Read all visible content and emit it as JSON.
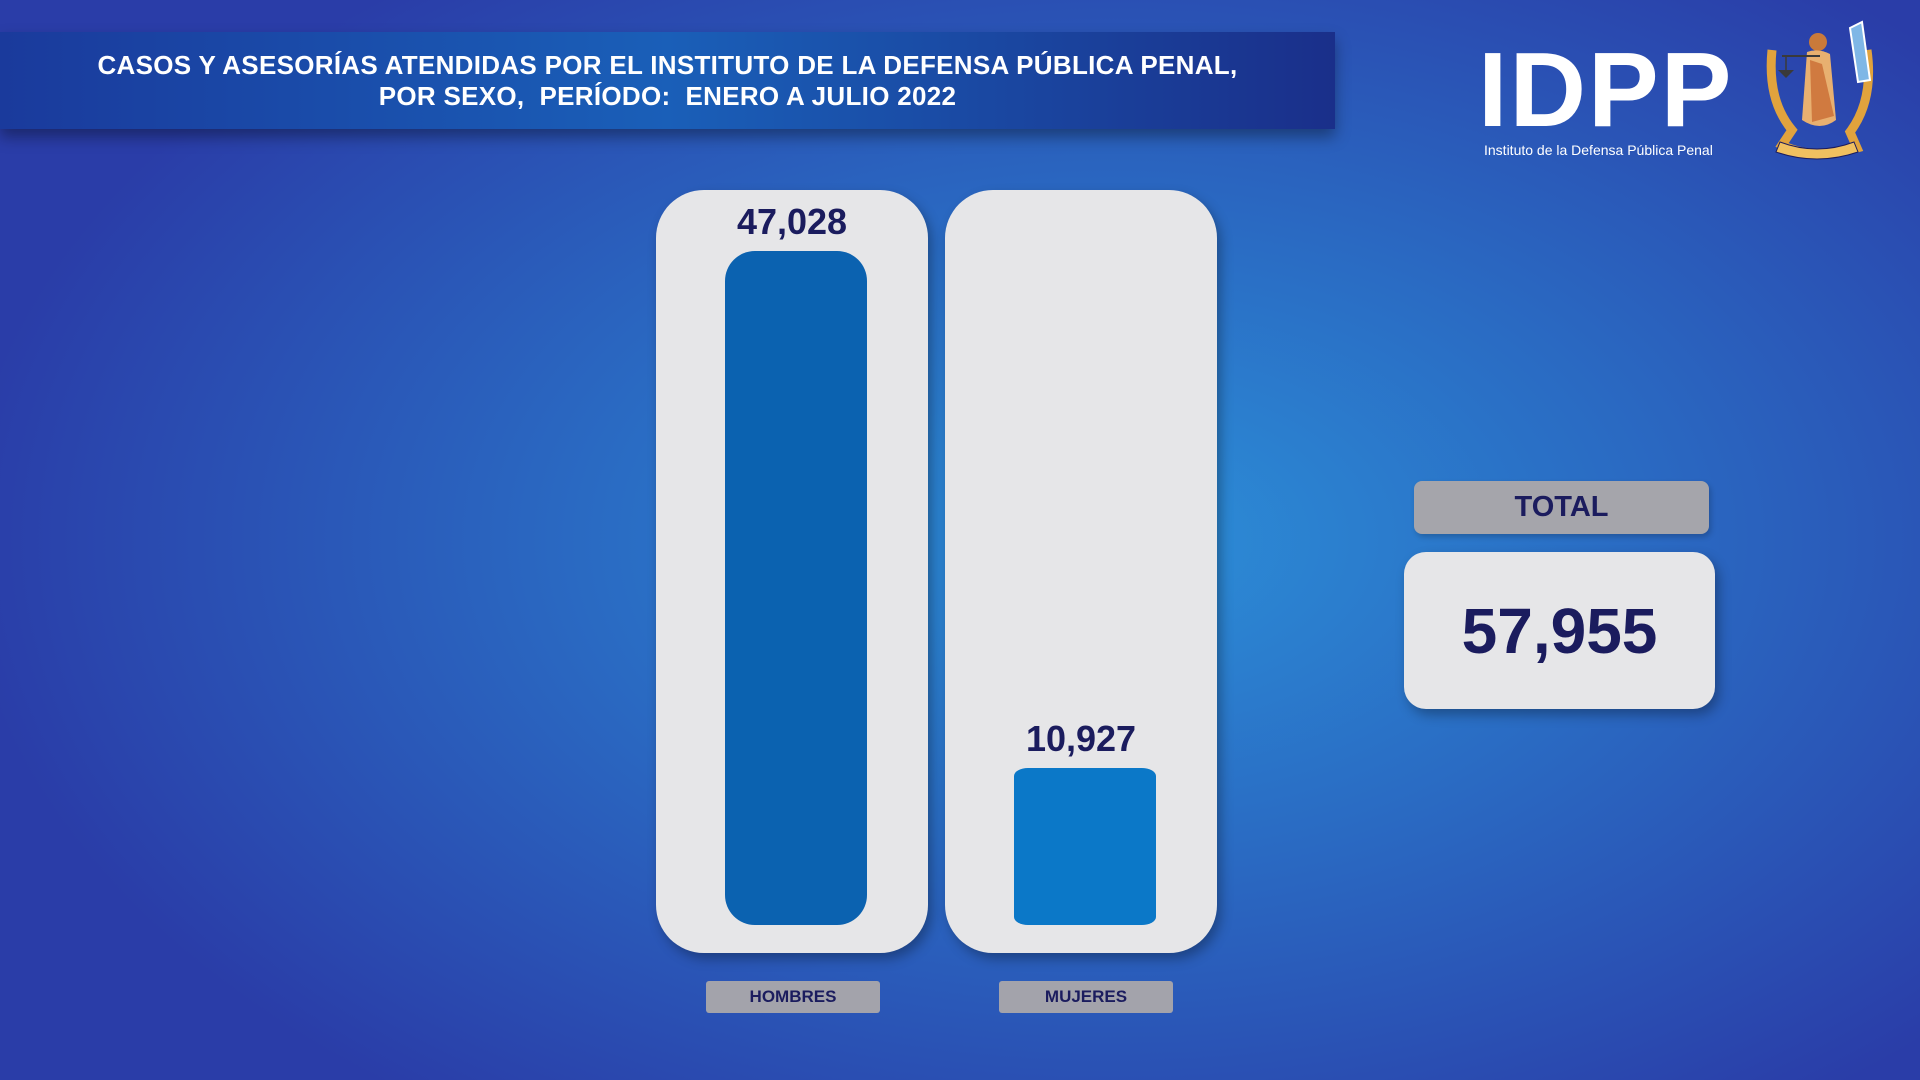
{
  "title": {
    "line1": "CASOS Y ASESORÍAS ATENDIDAS POR EL INSTITUTO DE LA DEFENSA PÚBLICA PENAL,",
    "line2": "POR SEXO,  PERÍODO:  ENERO A JULIO 2022"
  },
  "logo": {
    "text": "IDPP",
    "subtitle": "Instituto de la Defensa Pública Penal",
    "seal_icon": "justice-seal-icon"
  },
  "chart_data": {
    "type": "bar",
    "categories": [
      "HOMBRES",
      "MUJERES"
    ],
    "values": [
      47028,
      10927
    ],
    "value_labels": [
      "47,028",
      "10,927"
    ],
    "colors": [
      "#0b62b0",
      "#0b78c8"
    ]
  },
  "total": {
    "label": "TOTAL",
    "value": "57,955"
  },
  "colors": {
    "text_dark": "#1b1c5e",
    "panel": "#e6e6e8",
    "label_bg": "#a5a5ab"
  }
}
